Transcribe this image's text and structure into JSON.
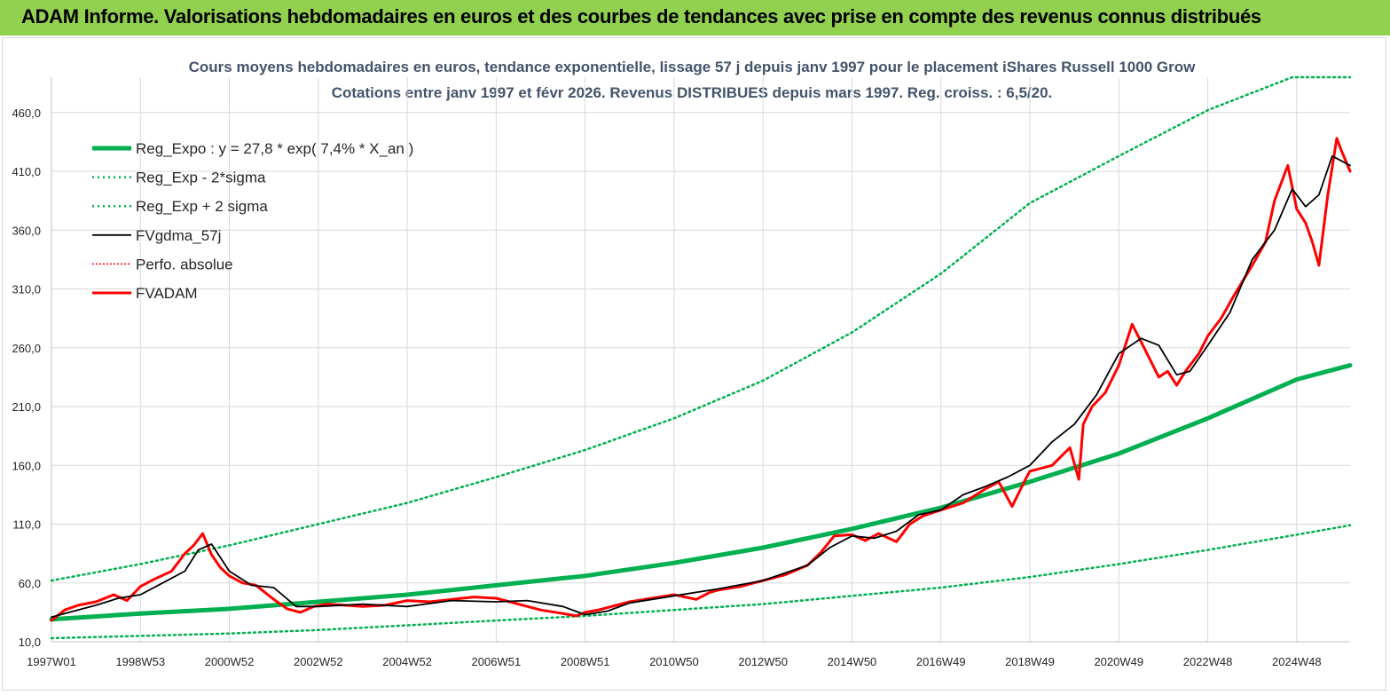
{
  "header": {
    "title": "ADAM Informe. Valorisations hebdomadaires en euros et des courbes de tendances avec prise en compte des revenus connus distribués"
  },
  "chart_data": {
    "type": "line",
    "title": "Cours moyens hebdomadaires en euros, tendance exponentielle, lissage 57 j depuis janv 1997  pour le placement iShares Russell 1000 Grow",
    "subtitle": "Cotations entre janv 1997 et févr 2026. Revenus DISTRIBUES depuis mars 1997. Reg. croiss. : 6,5/20.",
    "xlabel": "",
    "ylabel": "",
    "ylim": [
      10,
      490
    ],
    "y_ticks": [
      "10,0",
      "60,0",
      "110,0",
      "160,0",
      "210,0",
      "260,0",
      "310,0",
      "360,0",
      "410,0",
      "460,0"
    ],
    "y_tick_values": [
      10,
      60,
      110,
      160,
      210,
      260,
      310,
      360,
      410,
      460
    ],
    "x_ticks": [
      "1997W01",
      "1998W53",
      "2000W52",
      "2002W52",
      "2004W52",
      "2006W51",
      "2008W51",
      "2010W50",
      "2012W50",
      "2014W50",
      "2016W49",
      "2018W49",
      "2020W49",
      "2022W48",
      "2024W48"
    ],
    "x_tick_years": [
      1997.0,
      1999.0,
      2001.0,
      2003.0,
      2005.0,
      2007.0,
      2009.0,
      2011.0,
      2013.0,
      2015.0,
      2017.0,
      2019.0,
      2021.0,
      2023.0,
      2025.0
    ],
    "xlim": [
      1997.0,
      2026.2
    ],
    "grid": true,
    "legend_position": "top-left",
    "colors": {
      "green": "#00b050",
      "black": "#000000",
      "red": "#ff0000"
    },
    "series": [
      {
        "name": "Reg_Expo : y = 27,8 * exp( 7,4% *  X_an )",
        "style": "solid-thick",
        "color": "#00b050",
        "x": [
          1997.0,
          1999.0,
          2001.0,
          2003.0,
          2005.0,
          2007.0,
          2009.0,
          2011.0,
          2013.0,
          2015.0,
          2017.0,
          2019.0,
          2021.0,
          2023.0,
          2025.0,
          2026.2
        ],
        "values": [
          29,
          34,
          38,
          44,
          50,
          58,
          66,
          77,
          90,
          106,
          124,
          146,
          170,
          200,
          233,
          245
        ]
      },
      {
        "name": "Reg_Exp - 2*sigma",
        "style": "dotted",
        "color": "#00b050",
        "x": [
          1997.0,
          1999.0,
          2001.0,
          2003.0,
          2005.0,
          2007.0,
          2009.0,
          2011.0,
          2013.0,
          2015.0,
          2017.0,
          2019.0,
          2021.0,
          2023.0,
          2025.0,
          2026.2
        ],
        "values": [
          13,
          15,
          17,
          20,
          24,
          28,
          32,
          37,
          42,
          49,
          56,
          65,
          76,
          88,
          101,
          109
        ]
      },
      {
        "name": "Reg_Exp + 2 sigma",
        "style": "dotted",
        "color": "#00b050",
        "x": [
          1997.0,
          1999.0,
          2001.0,
          2003.0,
          2005.0,
          2007.0,
          2009.0,
          2011.0,
          2013.0,
          2015.0,
          2017.0,
          2019.0,
          2021.0,
          2023.0,
          2024.9,
          2026.2
        ],
        "values": [
          62,
          76,
          92,
          110,
          128,
          150,
          173,
          200,
          232,
          273,
          323,
          383,
          423,
          462,
          490,
          490
        ]
      },
      {
        "name": "FVgdma_57j",
        "style": "solid",
        "color": "#000000",
        "x": [
          1997.0,
          1997.5,
          1998.0,
          1998.5,
          1999.0,
          1999.5,
          2000.0,
          2000.3,
          2000.6,
          2001.0,
          2001.5,
          2002.0,
          2002.5,
          2003.0,
          2004.0,
          2005.0,
          2006.0,
          2007.0,
          2007.7,
          2008.5,
          2009.0,
          2009.5,
          2010.0,
          2011.0,
          2012.0,
          2013.0,
          2014.0,
          2014.5,
          2015.0,
          2015.5,
          2016.0,
          2016.5,
          2017.0,
          2017.5,
          2018.0,
          2018.5,
          2019.0,
          2019.5,
          2020.0,
          2020.5,
          2021.0,
          2021.5,
          2021.9,
          2022.3,
          2022.6,
          2023.0,
          2023.5,
          2024.0,
          2024.5,
          2024.9,
          2025.2,
          2025.5,
          2025.8,
          2026.2
        ],
        "values": [
          31,
          36,
          41,
          47,
          50,
          60,
          70,
          88,
          93,
          70,
          58,
          56,
          40,
          40,
          42,
          40,
          45,
          44,
          45,
          40,
          33,
          36,
          43,
          49,
          55,
          62,
          75,
          90,
          100,
          98,
          104,
          118,
          122,
          135,
          142,
          150,
          160,
          180,
          195,
          220,
          255,
          268,
          262,
          237,
          240,
          262,
          290,
          335,
          360,
          395,
          380,
          390,
          423,
          415
        ]
      },
      {
        "name": "Perfo. absolue",
        "style": "dotted-thin",
        "color": "#ff0000",
        "x": [],
        "values": []
      },
      {
        "name": "FVADAM",
        "style": "solid-thick",
        "color": "#ff0000",
        "x": [
          1997.0,
          1997.3,
          1997.6,
          1998.0,
          1998.4,
          1998.7,
          1999.0,
          1999.3,
          1999.7,
          2000.0,
          2000.2,
          2000.4,
          2000.6,
          2000.8,
          2001.0,
          2001.3,
          2001.6,
          2002.0,
          2002.3,
          2002.6,
          2002.9,
          2003.2,
          2003.6,
          2004.0,
          2004.5,
          2005.0,
          2005.5,
          2006.0,
          2006.5,
          2007.0,
          2007.5,
          2008.0,
          2008.5,
          2008.8,
          2009.0,
          2009.3,
          2009.7,
          2010.0,
          2010.5,
          2011.0,
          2011.5,
          2011.8,
          2012.0,
          2012.5,
          2013.0,
          2013.5,
          2014.0,
          2014.3,
          2014.6,
          2015.0,
          2015.3,
          2015.6,
          2016.0,
          2016.3,
          2016.6,
          2017.0,
          2017.5,
          2018.0,
          2018.3,
          2018.6,
          2018.9,
          2019.0,
          2019.5,
          2019.9,
          2020.1,
          2020.2,
          2020.4,
          2020.7,
          2021.0,
          2021.3,
          2021.5,
          2021.9,
          2022.1,
          2022.3,
          2022.5,
          2022.8,
          2023.0,
          2023.3,
          2023.6,
          2024.0,
          2024.3,
          2024.5,
          2024.8,
          2025.0,
          2025.2,
          2025.35,
          2025.5,
          2025.7,
          2025.9,
          2026.0,
          2026.2
        ],
        "values": [
          28,
          37,
          41,
          44,
          50,
          45,
          57,
          63,
          70,
          85,
          92,
          102,
          84,
          73,
          66,
          60,
          58,
          46,
          38,
          35,
          40,
          42,
          41,
          40,
          41,
          45,
          44,
          46,
          48,
          47,
          42,
          37,
          34,
          32,
          35,
          37,
          41,
          44,
          47,
          50,
          46,
          52,
          54,
          57,
          62,
          67,
          75,
          86,
          100,
          101,
          96,
          102,
          95,
          110,
          117,
          122,
          128,
          140,
          146,
          125,
          148,
          155,
          160,
          175,
          148,
          195,
          210,
          222,
          245,
          280,
          265,
          235,
          240,
          228,
          240,
          255,
          270,
          285,
          305,
          330,
          350,
          385,
          415,
          378,
          366,
          350,
          330,
          390,
          438,
          428,
          410
        ]
      }
    ]
  }
}
